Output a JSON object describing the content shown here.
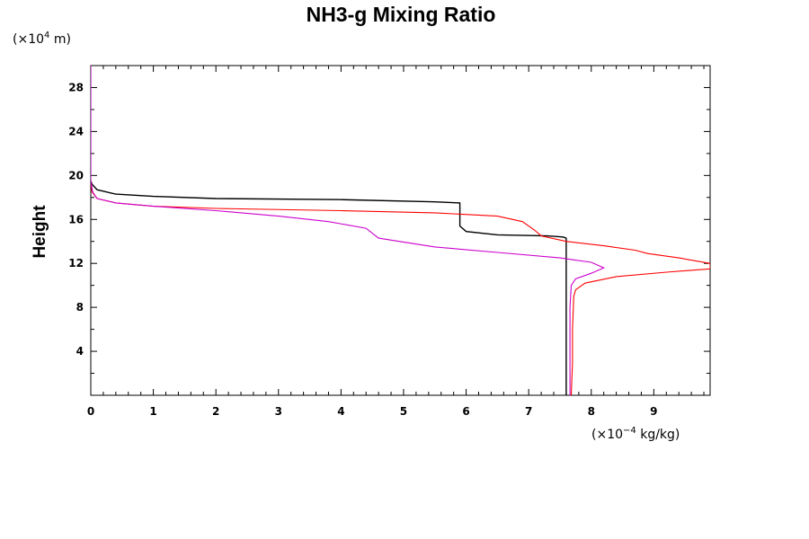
{
  "chart_data": {
    "type": "line",
    "title": "NH3-g Mixing Ratio",
    "xlabel": "",
    "ylabel": "Height",
    "x_unit": {
      "base": "(×10",
      "exp": "−4",
      "rest": " kg/kg)"
    },
    "y_unit": {
      "base": "(×10",
      "exp": "4",
      "rest": " m)"
    },
    "xlim": [
      0,
      9.9
    ],
    "ylim": [
      0,
      30
    ],
    "xticks": [
      0,
      1,
      2,
      3,
      4,
      5,
      6,
      7,
      8,
      9
    ],
    "yticks": [
      4,
      8,
      12,
      16,
      20,
      24,
      28
    ],
    "series": [
      {
        "color": "#000000",
        "points": [
          [
            7.6,
            0
          ],
          [
            7.6,
            4
          ],
          [
            7.6,
            8
          ],
          [
            7.6,
            12
          ],
          [
            7.6,
            14.3
          ],
          [
            7.55,
            14.4
          ],
          [
            7.3,
            14.5
          ],
          [
            6.5,
            14.6
          ],
          [
            6.0,
            14.9
          ],
          [
            5.9,
            15.4
          ],
          [
            5.9,
            17.5
          ],
          [
            5.5,
            17.6
          ],
          [
            4.0,
            17.8
          ],
          [
            2.0,
            17.9
          ],
          [
            1.0,
            18.1
          ],
          [
            0.4,
            18.3
          ],
          [
            0.1,
            18.7
          ],
          [
            0.02,
            19.2
          ],
          [
            0.0,
            19.5
          ]
        ]
      },
      {
        "color": "#ff0000",
        "points": [
          [
            7.68,
            0
          ],
          [
            7.7,
            3
          ],
          [
            7.7,
            6
          ],
          [
            7.72,
            9
          ],
          [
            7.75,
            9.6
          ],
          [
            7.9,
            10.2
          ],
          [
            8.4,
            10.8
          ],
          [
            9.2,
            11.2
          ],
          [
            9.9,
            11.5
          ],
          [
            9.9,
            12.0
          ],
          [
            9.4,
            12.5
          ],
          [
            8.9,
            12.9
          ],
          [
            8.7,
            13.2
          ],
          [
            8.2,
            13.6
          ],
          [
            7.6,
            14.0
          ],
          [
            7.2,
            14.5
          ],
          [
            7.1,
            15.0
          ],
          [
            6.9,
            15.8
          ],
          [
            6.5,
            16.3
          ],
          [
            5.5,
            16.6
          ],
          [
            4.0,
            16.8
          ],
          [
            2.0,
            17.0
          ],
          [
            1.0,
            17.2
          ],
          [
            0.4,
            17.5
          ],
          [
            0.1,
            17.9
          ],
          [
            0.02,
            18.5
          ],
          [
            0.0,
            19.5
          ]
        ]
      },
      {
        "color": "#cc00cc",
        "points": [
          [
            7.66,
            0
          ],
          [
            7.66,
            4
          ],
          [
            7.66,
            8
          ],
          [
            7.68,
            10
          ],
          [
            7.75,
            10.6
          ],
          [
            8.0,
            11.1
          ],
          [
            8.2,
            11.6
          ],
          [
            8.0,
            12.1
          ],
          [
            7.5,
            12.5
          ],
          [
            6.5,
            13.0
          ],
          [
            5.5,
            13.5
          ],
          [
            4.6,
            14.3
          ],
          [
            4.4,
            15.2
          ],
          [
            3.8,
            15.8
          ],
          [
            3.0,
            16.3
          ],
          [
            2.0,
            16.8
          ],
          [
            1.0,
            17.2
          ],
          [
            0.4,
            17.5
          ],
          [
            0.1,
            17.9
          ],
          [
            0.03,
            18.5
          ],
          [
            0.0,
            19.5
          ],
          [
            0.0,
            30
          ]
        ]
      }
    ]
  }
}
